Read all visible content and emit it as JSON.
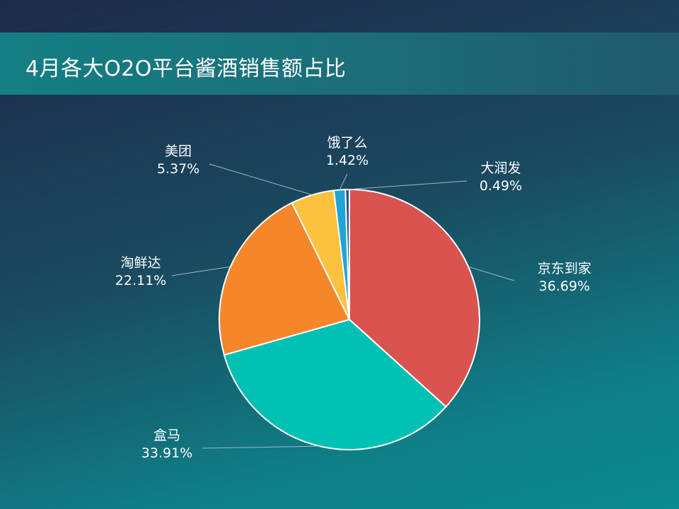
{
  "title": "4月各大O2O平台酱酒销售额占比",
  "chart_data": {
    "type": "pie",
    "title": "4月各大O2O平台酱酒销售额占比",
    "slices": [
      {
        "name": "京东到家",
        "value": 36.69,
        "label": "36.69%",
        "color": "#d9534f"
      },
      {
        "name": "盒马",
        "value": 33.91,
        "label": "33.91%",
        "color": "#00c1b3"
      },
      {
        "name": "淘鲜达",
        "value": 22.11,
        "label": "22.11%",
        "color": "#f5862a"
      },
      {
        "name": "美团",
        "value": 5.37,
        "label": "5.37%",
        "color": "#fcc13e"
      },
      {
        "name": "饿了么",
        "value": 1.42,
        "label": "1.42%",
        "color": "#1fa4d6"
      },
      {
        "name": "大润发",
        "value": 0.49,
        "label": "0.49%",
        "color": "#2f4e8a"
      }
    ]
  }
}
